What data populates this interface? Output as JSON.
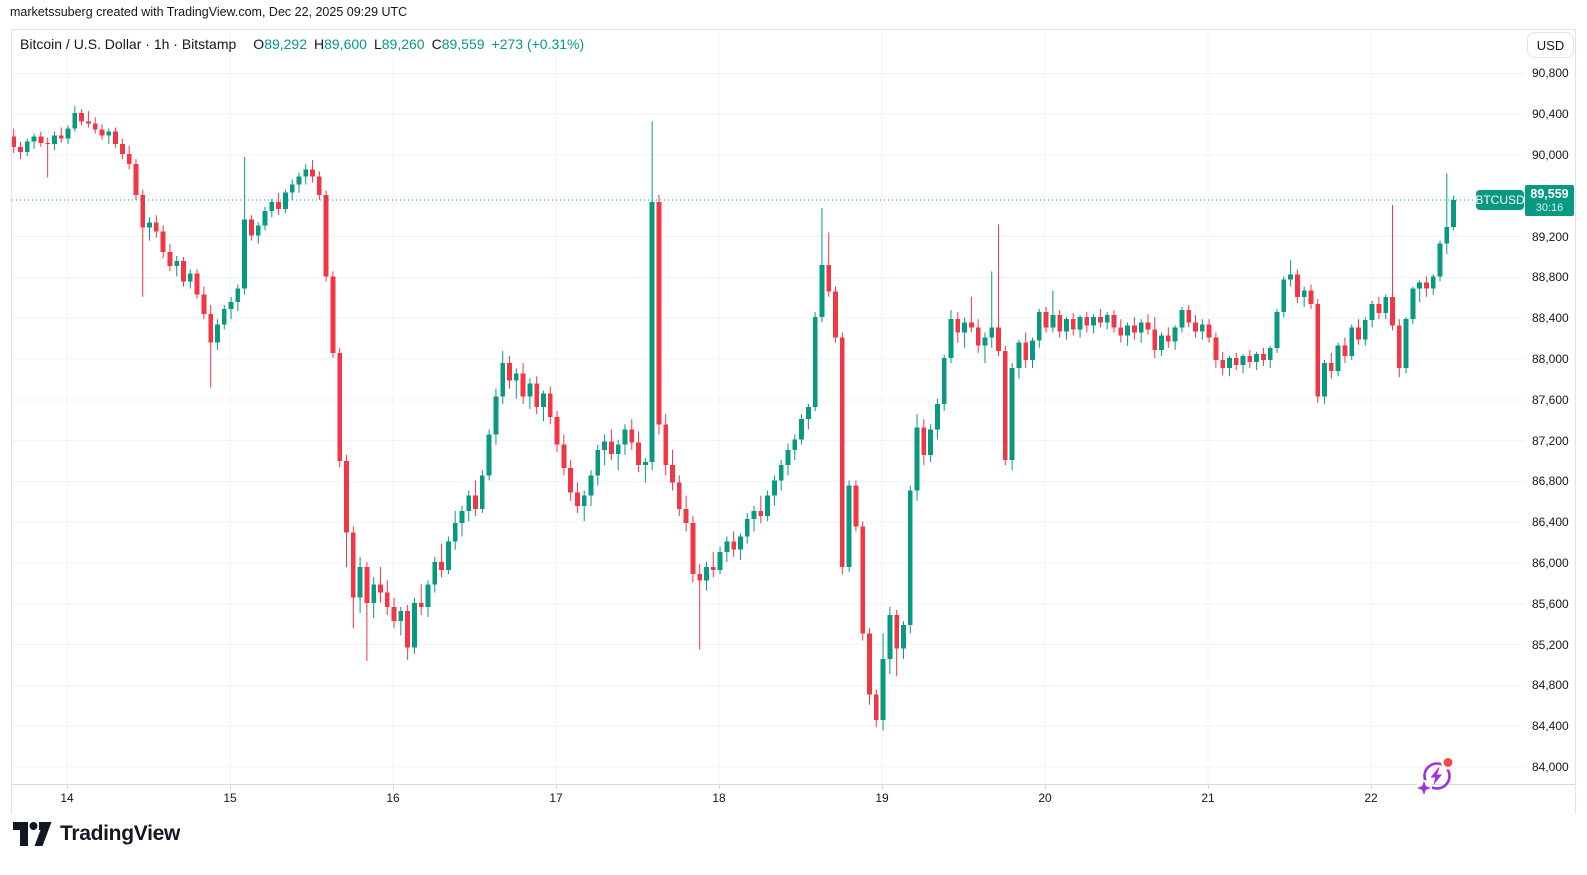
{
  "attribution": "marketssuberg created with TradingView.com, Dec 22, 2025 09:29 UTC",
  "header": {
    "title": "Bitcoin / U.S. Dollar · 1h · Bitstamp",
    "ohlc": [
      {
        "label": "O",
        "value": "89,292"
      },
      {
        "label": "H",
        "value": "89,600"
      },
      {
        "label": "L",
        "value": "89,260"
      },
      {
        "label": "C",
        "value": "89,559"
      }
    ],
    "change": "+273 (+0.31%)"
  },
  "currency_button": "USD",
  "price_line": {
    "symbol_label": "BTCUSD",
    "price": "89,559",
    "countdown": "30:16"
  },
  "logo": {
    "text": "TradingView"
  },
  "colors": {
    "up": "#089981",
    "down": "#F23645",
    "accent": "#089981",
    "grid": "#F0F3FA",
    "border": "#E0E3EB",
    "text": "#131722",
    "muted": "#787B86",
    "ai_purple_start": "#7C3AED",
    "ai_purple_end": "#C026D3",
    "ai_dot": "#F5483F"
  },
  "chart_data": {
    "type": "candlestick",
    "title": "Bitcoin / U.S. Dollar",
    "interval": "1h",
    "exchange": "Bitstamp",
    "price_axis": {
      "min": 84000,
      "max": 90800,
      "step": 400,
      "labels": [
        "90,800",
        "90,400",
        "90,000",
        "89,600",
        "89,200",
        "88,800",
        "88,400",
        "88,000",
        "87,600",
        "87,200",
        "86,800",
        "86,400",
        "86,000",
        "85,600",
        "85,200",
        "84,800",
        "84,400",
        "84,000"
      ]
    },
    "time_axis": {
      "day_labels": [
        "14",
        "15",
        "16",
        "17",
        "18",
        "19",
        "20",
        "21",
        "22"
      ],
      "candles_per_day": 24,
      "first_day_start_index": 8
    },
    "current_price": 89559,
    "grid": true,
    "candles": [
      [
        90180,
        90260,
        90020,
        90080
      ],
      [
        90080,
        90130,
        89960,
        90030
      ],
      [
        90030,
        90160,
        89990,
        90130
      ],
      [
        90130,
        90210,
        90060,
        90180
      ],
      [
        90180,
        90230,
        90080,
        90120
      ],
      [
        90120,
        90170,
        89780,
        90110
      ],
      [
        90110,
        90230,
        90050,
        90190
      ],
      [
        90190,
        90270,
        90120,
        90160
      ],
      [
        90160,
        90290,
        90110,
        90260
      ],
      [
        90260,
        90480,
        90230,
        90410
      ],
      [
        90410,
        90450,
        90290,
        90330
      ],
      [
        90330,
        90430,
        90270,
        90310
      ],
      [
        90310,
        90370,
        90210,
        90250
      ],
      [
        90250,
        90300,
        90150,
        90190
      ],
      [
        90190,
        90260,
        90110,
        90230
      ],
      [
        90230,
        90270,
        90070,
        90110
      ],
      [
        90110,
        90160,
        89960,
        90010
      ],
      [
        90010,
        90090,
        89860,
        89910
      ],
      [
        89910,
        89960,
        89560,
        89610
      ],
      [
        89610,
        89660,
        88610,
        89290
      ],
      [
        89290,
        89390,
        89160,
        89340
      ],
      [
        89340,
        89410,
        89190,
        89250
      ],
      [
        89250,
        89310,
        88990,
        89050
      ],
      [
        89050,
        89130,
        88860,
        88910
      ],
      [
        88910,
        89010,
        88810,
        88960
      ],
      [
        88960,
        89000,
        88710,
        88760
      ],
      [
        88760,
        88880,
        88690,
        88840
      ],
      [
        88840,
        88880,
        88590,
        88630
      ],
      [
        88630,
        88710,
        88390,
        88440
      ],
      [
        88440,
        88530,
        87720,
        88160
      ],
      [
        88160,
        88390,
        88090,
        88340
      ],
      [
        88340,
        88530,
        88290,
        88490
      ],
      [
        88490,
        88610,
        88390,
        88560
      ],
      [
        88560,
        88730,
        88470,
        88690
      ],
      [
        88690,
        89980,
        88630,
        89370
      ],
      [
        89370,
        89410,
        89160,
        89210
      ],
      [
        89210,
        89340,
        89130,
        89310
      ],
      [
        89310,
        89490,
        89260,
        89450
      ],
      [
        89450,
        89570,
        89390,
        89540
      ],
      [
        89540,
        89630,
        89410,
        89470
      ],
      [
        89470,
        89660,
        89430,
        89630
      ],
      [
        89630,
        89760,
        89560,
        89710
      ],
      [
        89710,
        89830,
        89630,
        89790
      ],
      [
        89790,
        89910,
        89710,
        89860
      ],
      [
        89860,
        89950,
        89730,
        89790
      ],
      [
        89790,
        89840,
        89560,
        89610
      ],
      [
        89610,
        89650,
        88760,
        88810
      ],
      [
        88810,
        88860,
        88010,
        88060
      ],
      [
        88060,
        88110,
        86940,
        87000
      ],
      [
        87000,
        87060,
        85960,
        86300
      ],
      [
        86300,
        86360,
        85360,
        85660
      ],
      [
        85660,
        86060,
        85510,
        85960
      ],
      [
        85960,
        86010,
        85040,
        85610
      ],
      [
        85610,
        85860,
        85460,
        85790
      ],
      [
        85790,
        85960,
        85610,
        85710
      ],
      [
        85710,
        85830,
        85490,
        85570
      ],
      [
        85570,
        85660,
        85360,
        85430
      ],
      [
        85430,
        85570,
        85290,
        85530
      ],
      [
        85530,
        85590,
        85050,
        85170
      ],
      [
        85170,
        85660,
        85110,
        85610
      ],
      [
        85610,
        85790,
        85490,
        85570
      ],
      [
        85570,
        85830,
        85470,
        85790
      ],
      [
        85790,
        86060,
        85710,
        86010
      ],
      [
        86010,
        86190,
        85860,
        85930
      ],
      [
        85930,
        86260,
        85890,
        86210
      ],
      [
        86210,
        86510,
        86130,
        86390
      ],
      [
        86390,
        86560,
        86260,
        86510
      ],
      [
        86510,
        86710,
        86410,
        86660
      ],
      [
        86660,
        86810,
        86460,
        86530
      ],
      [
        86530,
        86910,
        86490,
        86860
      ],
      [
        86860,
        87310,
        86810,
        87260
      ],
      [
        87260,
        87710,
        87160,
        87630
      ],
      [
        87630,
        88080,
        87560,
        87960
      ],
      [
        87960,
        88030,
        87710,
        87790
      ],
      [
        87790,
        87910,
        87610,
        87860
      ],
      [
        87860,
        87960,
        87560,
        87630
      ],
      [
        87630,
        87810,
        87510,
        87760
      ],
      [
        87760,
        87830,
        87460,
        87530
      ],
      [
        87530,
        87690,
        87390,
        87660
      ],
      [
        87660,
        87730,
        87360,
        87430
      ],
      [
        87430,
        87490,
        87090,
        87160
      ],
      [
        87160,
        87260,
        86860,
        86930
      ],
      [
        86930,
        87010,
        86610,
        86690
      ],
      [
        86690,
        86790,
        86490,
        86560
      ],
      [
        86560,
        86710,
        86410,
        86660
      ],
      [
        86660,
        86910,
        86560,
        86860
      ],
      [
        86860,
        87160,
        86760,
        87110
      ],
      [
        87110,
        87260,
        86960,
        87190
      ],
      [
        87190,
        87310,
        87010,
        87070
      ],
      [
        87070,
        87210,
        86910,
        87160
      ],
      [
        87160,
        87360,
        87060,
        87310
      ],
      [
        87310,
        87410,
        87110,
        87180
      ],
      [
        87180,
        87290,
        86890,
        86960
      ],
      [
        86960,
        87030,
        86790,
        86990
      ],
      [
        86990,
        90330,
        86910,
        89540
      ],
      [
        89540,
        89610,
        87260,
        87360
      ],
      [
        87360,
        87460,
        86860,
        86960
      ],
      [
        86960,
        87110,
        86710,
        86790
      ],
      [
        86790,
        86860,
        86460,
        86530
      ],
      [
        86530,
        86660,
        86310,
        86390
      ],
      [
        86390,
        86460,
        85810,
        85890
      ],
      [
        85890,
        85990,
        85150,
        85830
      ],
      [
        85830,
        86010,
        85730,
        85960
      ],
      [
        85960,
        86110,
        85860,
        85930
      ],
      [
        85930,
        86160,
        85890,
        86110
      ],
      [
        86110,
        86260,
        86010,
        86210
      ],
      [
        86210,
        86310,
        86060,
        86130
      ],
      [
        86130,
        86290,
        86030,
        86260
      ],
      [
        86260,
        86490,
        86190,
        86430
      ],
      [
        86430,
        86560,
        86310,
        86510
      ],
      [
        86510,
        86660,
        86390,
        86460
      ],
      [
        86460,
        86710,
        86410,
        86660
      ],
      [
        86660,
        86860,
        86560,
        86810
      ],
      [
        86810,
        87010,
        86710,
        86960
      ],
      [
        86960,
        87170,
        86860,
        87110
      ],
      [
        87110,
        87260,
        87010,
        87210
      ],
      [
        87210,
        87460,
        87160,
        87410
      ],
      [
        87410,
        87560,
        87310,
        87530
      ],
      [
        87530,
        88460,
        87490,
        88410
      ],
      [
        88410,
        89480,
        88360,
        88920
      ],
      [
        88920,
        89240,
        88610,
        88660
      ],
      [
        88660,
        88710,
        88160,
        88210
      ],
      [
        88210,
        88260,
        85890,
        85960
      ],
      [
        85960,
        86810,
        85910,
        86760
      ],
      [
        86760,
        86810,
        86310,
        86360
      ],
      [
        86360,
        86410,
        85240,
        85310
      ],
      [
        85310,
        85360,
        84610,
        84710
      ],
      [
        84710,
        84760,
        84390,
        84460
      ],
      [
        84460,
        85310,
        84360,
        85060
      ],
      [
        85060,
        85570,
        84910,
        85490
      ],
      [
        85490,
        85540,
        84890,
        85160
      ],
      [
        85160,
        85430,
        85060,
        85390
      ],
      [
        85390,
        86760,
        85310,
        86710
      ],
      [
        86710,
        87460,
        86610,
        87330
      ],
      [
        87330,
        87410,
        86960,
        87060
      ],
      [
        87060,
        87360,
        86990,
        87310
      ],
      [
        87310,
        87610,
        87210,
        87560
      ],
      [
        87560,
        88040,
        87490,
        88010
      ],
      [
        88010,
        88480,
        87960,
        88390
      ],
      [
        88390,
        88460,
        88160,
        88260
      ],
      [
        88260,
        88410,
        88110,
        88360
      ],
      [
        88360,
        88610,
        88260,
        88310
      ],
      [
        88310,
        88390,
        88060,
        88130
      ],
      [
        88130,
        88260,
        87960,
        88210
      ],
      [
        88210,
        88860,
        88110,
        88310
      ],
      [
        88310,
        89320,
        88030,
        88080
      ],
      [
        88080,
        88130,
        86960,
        87010
      ],
      [
        87010,
        87960,
        86910,
        87910
      ],
      [
        87910,
        88190,
        87810,
        88160
      ],
      [
        88160,
        88260,
        87910,
        87990
      ],
      [
        87990,
        88210,
        87910,
        88180
      ],
      [
        88180,
        88490,
        88110,
        88460
      ],
      [
        88460,
        88510,
        88260,
        88310
      ],
      [
        88310,
        88670,
        88260,
        88430
      ],
      [
        88430,
        88480,
        88210,
        88270
      ],
      [
        88270,
        88410,
        88190,
        88390
      ],
      [
        88390,
        88450,
        88230,
        88290
      ],
      [
        88290,
        88430,
        88210,
        88410
      ],
      [
        88410,
        88460,
        88260,
        88330
      ],
      [
        88330,
        88440,
        88250,
        88410
      ],
      [
        88410,
        88490,
        88310,
        88360
      ],
      [
        88360,
        88460,
        88290,
        88430
      ],
      [
        88430,
        88480,
        88260,
        88310
      ],
      [
        88310,
        88390,
        88160,
        88230
      ],
      [
        88230,
        88360,
        88130,
        88330
      ],
      [
        88330,
        88410,
        88190,
        88260
      ],
      [
        88260,
        88390,
        88160,
        88360
      ],
      [
        88360,
        88440,
        88240,
        88290
      ],
      [
        88290,
        88410,
        88010,
        88090
      ],
      [
        88090,
        88260,
        88030,
        88230
      ],
      [
        88230,
        88310,
        88110,
        88170
      ],
      [
        88170,
        88330,
        88090,
        88310
      ],
      [
        88310,
        88510,
        88260,
        88480
      ],
      [
        88480,
        88530,
        88310,
        88360
      ],
      [
        88360,
        88430,
        88210,
        88270
      ],
      [
        88270,
        88390,
        88190,
        88340
      ],
      [
        88340,
        88390,
        88160,
        88210
      ],
      [
        88210,
        88260,
        87910,
        87990
      ],
      [
        87990,
        88070,
        87840,
        87910
      ],
      [
        87910,
        88030,
        87830,
        88010
      ],
      [
        88010,
        88060,
        87890,
        87940
      ],
      [
        87940,
        88050,
        87860,
        88030
      ],
      [
        88030,
        88090,
        87910,
        87970
      ],
      [
        87970,
        88070,
        87890,
        88050
      ],
      [
        88050,
        88110,
        87930,
        87990
      ],
      [
        87990,
        88130,
        87910,
        88110
      ],
      [
        88110,
        88490,
        88060,
        88460
      ],
      [
        88460,
        88810,
        88410,
        88780
      ],
      [
        88780,
        88970,
        88710,
        88830
      ],
      [
        88830,
        88880,
        88550,
        88610
      ],
      [
        88610,
        88710,
        88510,
        88670
      ],
      [
        88670,
        88730,
        88490,
        88540
      ],
      [
        88540,
        88590,
        87570,
        87630
      ],
      [
        87630,
        87990,
        87560,
        87960
      ],
      [
        87960,
        88060,
        87810,
        87880
      ],
      [
        87880,
        88160,
        87830,
        88130
      ],
      [
        88130,
        88210,
        87960,
        88030
      ],
      [
        88030,
        88340,
        87990,
        88310
      ],
      [
        88310,
        88390,
        88140,
        88190
      ],
      [
        88190,
        88410,
        88130,
        88380
      ],
      [
        88380,
        88570,
        88310,
        88540
      ],
      [
        88540,
        88610,
        88390,
        88450
      ],
      [
        88450,
        88630,
        88390,
        88610
      ],
      [
        88610,
        89510,
        88280,
        88330
      ],
      [
        88330,
        88390,
        87820,
        87910
      ],
      [
        87910,
        88410,
        87860,
        88390
      ],
      [
        88390,
        88710,
        88340,
        88690
      ],
      [
        88690,
        88770,
        88560,
        88750
      ],
      [
        88750,
        88810,
        88610,
        88690
      ],
      [
        88690,
        88830,
        88630,
        88810
      ],
      [
        88810,
        89160,
        88760,
        89130
      ],
      [
        89130,
        89820,
        89030,
        89292
      ],
      [
        89292,
        89600,
        89260,
        89559
      ]
    ]
  }
}
